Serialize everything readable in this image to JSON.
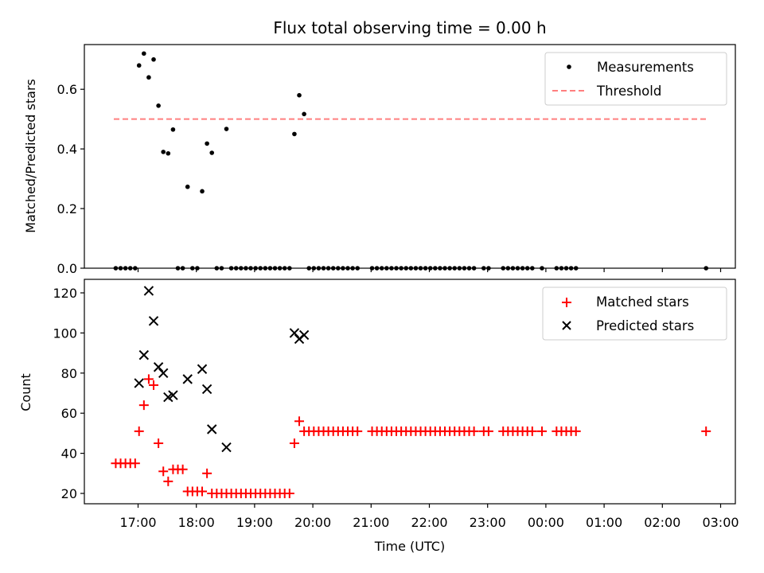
{
  "chart_data": [
    {
      "type": "scatter",
      "title": "Flux total observing time = 0.00 h",
      "xlabel": "",
      "ylabel": "Matched/Predicted stars",
      "ylim": [
        0,
        0.75
      ],
      "y_ticks": [
        "0.0",
        "0.2",
        "0.4",
        "0.6"
      ],
      "y_tick_values": [
        0,
        0.2,
        0.4,
        0.6
      ],
      "grid": false,
      "legend_position": "top-right",
      "legend": [
        "Measurements",
        "Threshold"
      ],
      "colors": {
        "measurements": "#000000",
        "threshold": "#ff7f7f"
      },
      "threshold": {
        "name": "Threshold",
        "value": 0.5,
        "x_range": [
          "16:35",
          "02:45"
        ]
      },
      "series": [
        {
          "name": "Measurements",
          "points": [
            [
              "16:37",
              0
            ],
            [
              "16:42",
              0
            ],
            [
              "16:47",
              0
            ],
            [
              "16:52",
              0
            ],
            [
              "16:57",
              0
            ],
            [
              "17:01",
              0.68
            ],
            [
              "17:06",
              0.72
            ],
            [
              "17:11",
              0.64
            ],
            [
              "17:16",
              0.7
            ],
            [
              "17:21",
              0.545
            ],
            [
              "17:26",
              0.39
            ],
            [
              "17:31",
              0.385
            ],
            [
              "17:36",
              0.465
            ],
            [
              "17:41",
              0
            ],
            [
              "17:46",
              0
            ],
            [
              "17:51",
              0.273
            ],
            [
              "17:56",
              0
            ],
            [
              "18:01",
              0
            ],
            [
              "18:06",
              0.258
            ],
            [
              "18:11",
              0.418
            ],
            [
              "18:16",
              0.387
            ],
            [
              "18:21",
              0
            ],
            [
              "18:26",
              0
            ],
            [
              "18:31",
              0.467
            ],
            [
              "18:36",
              0
            ],
            [
              "18:41",
              0
            ],
            [
              "18:46",
              0
            ],
            [
              "18:51",
              0
            ],
            [
              "18:56",
              0
            ],
            [
              "19:01",
              0
            ],
            [
              "19:06",
              0
            ],
            [
              "19:11",
              0
            ],
            [
              "19:16",
              0
            ],
            [
              "19:21",
              0
            ],
            [
              "19:26",
              0
            ],
            [
              "19:31",
              0
            ],
            [
              "19:36",
              0
            ],
            [
              "19:41",
              0.45
            ],
            [
              "19:46",
              0.58
            ],
            [
              "19:51",
              0.517
            ],
            [
              "19:56",
              0
            ],
            [
              "20:01",
              0
            ],
            [
              "20:06",
              0
            ],
            [
              "20:11",
              0
            ],
            [
              "20:16",
              0
            ],
            [
              "20:21",
              0
            ],
            [
              "20:26",
              0
            ],
            [
              "20:31",
              0
            ],
            [
              "20:36",
              0
            ],
            [
              "20:41",
              0
            ],
            [
              "20:46",
              0
            ],
            [
              "21:01",
              0
            ],
            [
              "21:06",
              0
            ],
            [
              "21:11",
              0
            ],
            [
              "21:16",
              0
            ],
            [
              "21:21",
              0
            ],
            [
              "21:26",
              0
            ],
            [
              "21:31",
              0
            ],
            [
              "21:36",
              0
            ],
            [
              "21:41",
              0
            ],
            [
              "21:46",
              0
            ],
            [
              "21:51",
              0
            ],
            [
              "21:56",
              0
            ],
            [
              "22:01",
              0
            ],
            [
              "22:06",
              0
            ],
            [
              "22:11",
              0
            ],
            [
              "22:16",
              0
            ],
            [
              "22:21",
              0
            ],
            [
              "22:26",
              0
            ],
            [
              "22:31",
              0
            ],
            [
              "22:36",
              0
            ],
            [
              "22:41",
              0
            ],
            [
              "22:46",
              0
            ],
            [
              "22:56",
              0
            ],
            [
              "23:01",
              0
            ],
            [
              "23:16",
              0
            ],
            [
              "23:21",
              0
            ],
            [
              "23:26",
              0
            ],
            [
              "23:31",
              0
            ],
            [
              "23:36",
              0
            ],
            [
              "23:41",
              0
            ],
            [
              "23:46",
              0
            ],
            [
              "23:56",
              0
            ],
            [
              "00:11",
              0
            ],
            [
              "00:16",
              0
            ],
            [
              "00:21",
              0
            ],
            [
              "00:26",
              0
            ],
            [
              "00:31",
              0
            ],
            [
              "02:45",
              0
            ]
          ]
        }
      ]
    },
    {
      "type": "scatter",
      "title": "",
      "xlabel": "Time (UTC)",
      "ylabel": "Count",
      "ylim": [
        15,
        127
      ],
      "y_ticks": [
        "20",
        "40",
        "60",
        "80",
        "100",
        "120"
      ],
      "y_tick_values": [
        20,
        40,
        60,
        80,
        100,
        120
      ],
      "x_ticks": [
        "17:00",
        "18:00",
        "19:00",
        "20:00",
        "21:00",
        "22:00",
        "23:00",
        "00:00",
        "01:00",
        "02:00",
        "03:00"
      ],
      "grid": false,
      "legend_position": "top-right",
      "legend": [
        "Matched stars",
        "Predicted stars"
      ],
      "colors": {
        "matched": "#ff0000",
        "predicted": "#000000"
      },
      "series": [
        {
          "name": "Matched stars",
          "points": [
            [
              "16:37",
              35
            ],
            [
              "16:42",
              35
            ],
            [
              "16:47",
              35
            ],
            [
              "16:52",
              35
            ],
            [
              "16:57",
              35
            ],
            [
              "17:01",
              51
            ],
            [
              "17:06",
              64
            ],
            [
              "17:11",
              77
            ],
            [
              "17:16",
              74
            ],
            [
              "17:21",
              45
            ],
            [
              "17:26",
              31
            ],
            [
              "17:31",
              26
            ],
            [
              "17:36",
              32
            ],
            [
              "17:41",
              32
            ],
            [
              "17:46",
              32
            ],
            [
              "17:51",
              21
            ],
            [
              "17:56",
              21
            ],
            [
              "18:01",
              21
            ],
            [
              "18:06",
              21
            ],
            [
              "18:11",
              30
            ],
            [
              "18:16",
              20
            ],
            [
              "18:21",
              20
            ],
            [
              "18:26",
              20
            ],
            [
              "18:31",
              20
            ],
            [
              "18:36",
              20
            ],
            [
              "18:41",
              20
            ],
            [
              "18:46",
              20
            ],
            [
              "18:51",
              20
            ],
            [
              "18:56",
              20
            ],
            [
              "19:01",
              20
            ],
            [
              "19:06",
              20
            ],
            [
              "19:11",
              20
            ],
            [
              "19:16",
              20
            ],
            [
              "19:21",
              20
            ],
            [
              "19:26",
              20
            ],
            [
              "19:31",
              20
            ],
            [
              "19:36",
              20
            ],
            [
              "19:41",
              45
            ],
            [
              "19:46",
              56
            ],
            [
              "19:51",
              51
            ],
            [
              "19:56",
              51
            ],
            [
              "20:01",
              51
            ],
            [
              "20:06",
              51
            ],
            [
              "20:11",
              51
            ],
            [
              "20:16",
              51
            ],
            [
              "20:21",
              51
            ],
            [
              "20:26",
              51
            ],
            [
              "20:31",
              51
            ],
            [
              "20:36",
              51
            ],
            [
              "20:41",
              51
            ],
            [
              "20:46",
              51
            ],
            [
              "21:01",
              51
            ],
            [
              "21:06",
              51
            ],
            [
              "21:11",
              51
            ],
            [
              "21:16",
              51
            ],
            [
              "21:21",
              51
            ],
            [
              "21:26",
              51
            ],
            [
              "21:31",
              51
            ],
            [
              "21:36",
              51
            ],
            [
              "21:41",
              51
            ],
            [
              "21:46",
              51
            ],
            [
              "21:51",
              51
            ],
            [
              "21:56",
              51
            ],
            [
              "22:01",
              51
            ],
            [
              "22:06",
              51
            ],
            [
              "22:11",
              51
            ],
            [
              "22:16",
              51
            ],
            [
              "22:21",
              51
            ],
            [
              "22:26",
              51
            ],
            [
              "22:31",
              51
            ],
            [
              "22:36",
              51
            ],
            [
              "22:41",
              51
            ],
            [
              "22:46",
              51
            ],
            [
              "22:56",
              51
            ],
            [
              "23:01",
              51
            ],
            [
              "23:16",
              51
            ],
            [
              "23:21",
              51
            ],
            [
              "23:26",
              51
            ],
            [
              "23:31",
              51
            ],
            [
              "23:36",
              51
            ],
            [
              "23:41",
              51
            ],
            [
              "23:46",
              51
            ],
            [
              "23:56",
              51
            ],
            [
              "00:11",
              51
            ],
            [
              "00:16",
              51
            ],
            [
              "00:21",
              51
            ],
            [
              "00:26",
              51
            ],
            [
              "00:31",
              51
            ],
            [
              "02:45",
              51
            ]
          ]
        },
        {
          "name": "Predicted stars",
          "points": [
            [
              "17:01",
              75
            ],
            [
              "17:06",
              89
            ],
            [
              "17:11",
              121
            ],
            [
              "17:16",
              106
            ],
            [
              "17:21",
              83
            ],
            [
              "17:26",
              80
            ],
            [
              "17:31",
              68
            ],
            [
              "17:36",
              69
            ],
            [
              "17:51",
              77
            ],
            [
              "18:06",
              82
            ],
            [
              "18:11",
              72
            ],
            [
              "18:16",
              52
            ],
            [
              "18:31",
              43
            ],
            [
              "19:41",
              100
            ],
            [
              "19:46",
              97
            ],
            [
              "19:51",
              99
            ]
          ]
        }
      ]
    }
  ]
}
